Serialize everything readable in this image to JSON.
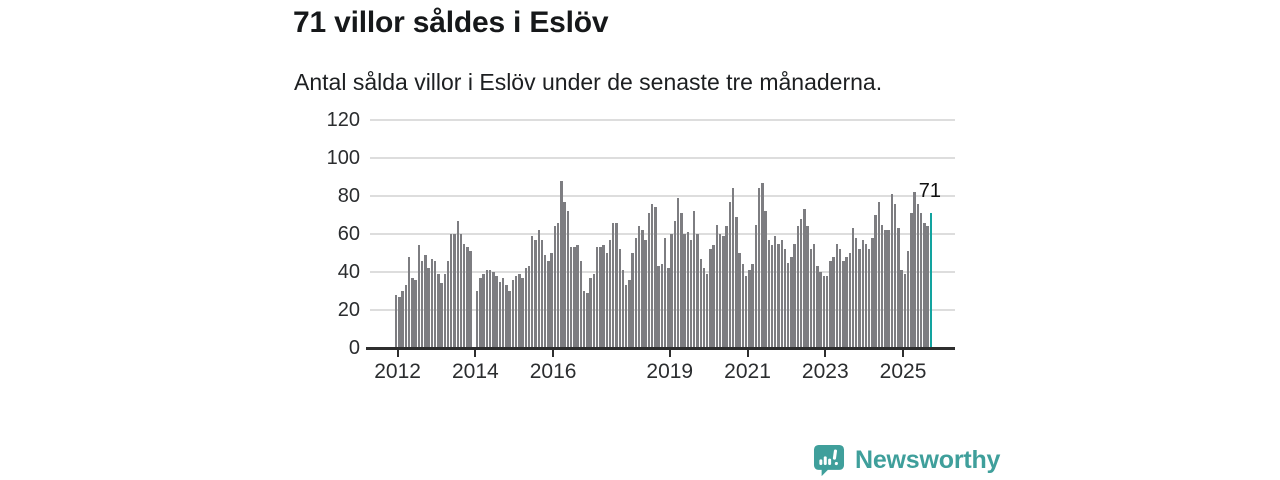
{
  "header": {
    "title": "71 villor såldes i Eslöv",
    "subtitle": "Antal sålda villor i Eslöv under de senaste tre månaderna."
  },
  "annotation": {
    "last_value_label": "71"
  },
  "branding": {
    "name": "Newsworthy",
    "icon": "newsworthy-speech-bubble-chart-icon"
  },
  "colors": {
    "bar": "#7d7d81",
    "highlight": "#12a39f",
    "grid": "#dddddd",
    "axis": "#2e2e2e",
    "brand": "#3f9f9b"
  },
  "chart_data": {
    "type": "bar",
    "title": "71 villor såldes i Eslöv",
    "subtitle": "Antal sålda villor i Eslöv under de senaste tre månaderna.",
    "xlabel": "",
    "ylabel": "",
    "ylim": [
      0,
      120
    ],
    "y_ticks": [
      0,
      20,
      40,
      60,
      80,
      100,
      120
    ],
    "x_tick_labels": [
      "2012",
      "2014",
      "2016",
      "2019",
      "2021",
      "2023",
      "2025"
    ],
    "x_tick_years": [
      2012,
      2014,
      2016,
      2019,
      2021,
      2023,
      2025
    ],
    "x_start_month": "2012-01",
    "x_end_month": "2025-10",
    "grid": true,
    "legend": false,
    "highlight_last_bar": true,
    "last_value": 71,
    "values": [
      28,
      27,
      30,
      33,
      48,
      37,
      36,
      54,
      46,
      49,
      42,
      47,
      46,
      39,
      34,
      39,
      46,
      60,
      60,
      67,
      60,
      55,
      53,
      51,
      null,
      30,
      37,
      39,
      41,
      41,
      40,
      38,
      35,
      37,
      33,
      30,
      36,
      38,
      39,
      37,
      42,
      43,
      59,
      57,
      62,
      57,
      49,
      46,
      50,
      64,
      66,
      88,
      77,
      72,
      53,
      53,
      54,
      46,
      30,
      29,
      37,
      39,
      53,
      53,
      54,
      50,
      57,
      66,
      66,
      52,
      41,
      33,
      36,
      50,
      58,
      64,
      62,
      57,
      71,
      76,
      74,
      43,
      44,
      58,
      42,
      60,
      67,
      79,
      71,
      60,
      61,
      57,
      72,
      60,
      47,
      42,
      39,
      52,
      54,
      65,
      60,
      59,
      64,
      77,
      84,
      69,
      50,
      44,
      38,
      41,
      44,
      65,
      84,
      87,
      72,
      57,
      54,
      59,
      55,
      57,
      52,
      45,
      48,
      55,
      64,
      68,
      73,
      64,
      52,
      55,
      43,
      40,
      38,
      38,
      46,
      48,
      55,
      52,
      46,
      48,
      50,
      63,
      58,
      52,
      57,
      55,
      52,
      58,
      70,
      77,
      65,
      62,
      62,
      81,
      76,
      63,
      41,
      39,
      51,
      71,
      82,
      76,
      71,
      66,
      64,
      71
    ]
  }
}
